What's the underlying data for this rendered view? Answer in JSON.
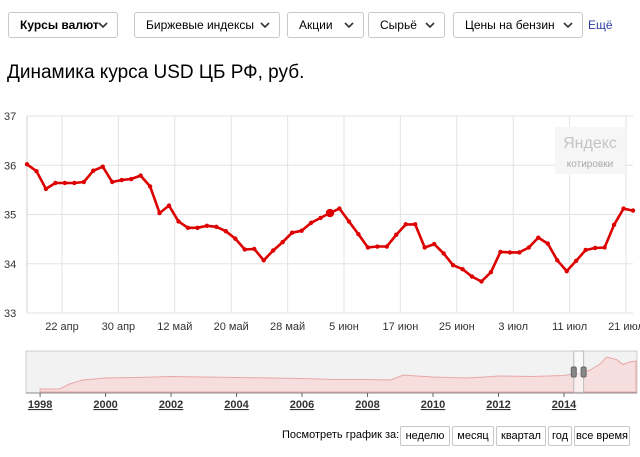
{
  "nav": {
    "items": [
      {
        "label": "Курсы валют",
        "active": true
      },
      {
        "label": "Биржевые индексы",
        "active": false
      },
      {
        "label": "Акции",
        "active": false
      },
      {
        "label": "Сырьё",
        "active": false
      },
      {
        "label": "Цены на бензин",
        "active": false
      }
    ],
    "more_label": "Ещё",
    "chevron_icon": "chevron-down-icon"
  },
  "page_title": "Динамика курса USD ЦБ РФ, руб.",
  "watermark": {
    "brand": "Яндекс",
    "caption": "котировки"
  },
  "colors": {
    "line": "#dd0000",
    "grid": "#e3e3e3",
    "overview_fill": "#f7dede",
    "overview_line": "#e8a7a7",
    "link": "#2c3ea3"
  },
  "chart_data": [
    {
      "type": "line",
      "title": "Динамика курса USD ЦБ РФ, руб.",
      "xlabel": "",
      "ylabel": "",
      "ylim": [
        33,
        37
      ],
      "yticks": [
        "33",
        "34",
        "35",
        "36",
        "37"
      ],
      "xtick_labels": [
        "22 апр",
        "30 апр",
        "12 май",
        "20 май",
        "28 май",
        "5 июн",
        "17 июн",
        "25 июн",
        "3 июл",
        "11 июл",
        "21 июл"
      ],
      "grid": true,
      "series": [
        {
          "values": [
            36.02,
            35.88,
            35.52,
            35.64,
            35.64,
            35.64,
            35.66,
            35.89,
            35.97,
            35.66,
            35.7,
            35.72,
            35.79,
            35.57,
            35.03,
            35.18,
            34.86,
            34.73,
            34.73,
            34.77,
            34.75,
            34.66,
            34.51,
            34.29,
            34.3,
            34.07,
            34.27,
            34.44,
            34.63,
            34.67,
            34.83,
            34.93,
            35.03,
            35.12,
            34.86,
            34.6,
            34.33,
            34.35,
            34.35,
            34.59,
            34.8,
            34.8,
            34.33,
            34.4,
            34.21,
            33.97,
            33.89,
            33.74,
            33.64,
            33.83,
            34.24,
            34.23,
            34.23,
            34.33,
            34.53,
            34.41,
            34.07,
            33.85,
            34.06,
            34.28,
            34.32,
            34.33,
            34.79,
            35.12,
            35.08
          ],
          "highlight_index": 32
        }
      ]
    },
    {
      "type": "area",
      "title": "",
      "xtick_labels": [
        "1998",
        "2000",
        "2002",
        "2004",
        "2006",
        "2008",
        "2010",
        "2012",
        "2014"
      ],
      "x": [
        1998.0,
        1998.6,
        1998.9,
        1999.3,
        2000.0,
        2001.0,
        2002.0,
        2003.0,
        2004.0,
        2005.0,
        2006.0,
        2007.0,
        2008.0,
        2008.7,
        2009.1,
        2009.5,
        2010.0,
        2011.0,
        2011.6,
        2012.0,
        2013.0,
        2014.0,
        2014.2,
        2014.5,
        2014.8,
        2015.1,
        2015.3,
        2015.6,
        2015.8,
        2016.0,
        2016.2
      ],
      "values": [
        6,
        6,
        16,
        24,
        28,
        29,
        31,
        30,
        29,
        28,
        27,
        25,
        25,
        24,
        34,
        32,
        30,
        28,
        30,
        32,
        31,
        33,
        35,
        37,
        44,
        56,
        70,
        65,
        55,
        60,
        62
      ],
      "selected_range_x": [
        2014.3,
        2014.6
      ]
    }
  ],
  "period_label": "Посмотреть график за:",
  "periods": [
    "неделю",
    "месяц",
    "квартал",
    "год",
    "все время"
  ]
}
